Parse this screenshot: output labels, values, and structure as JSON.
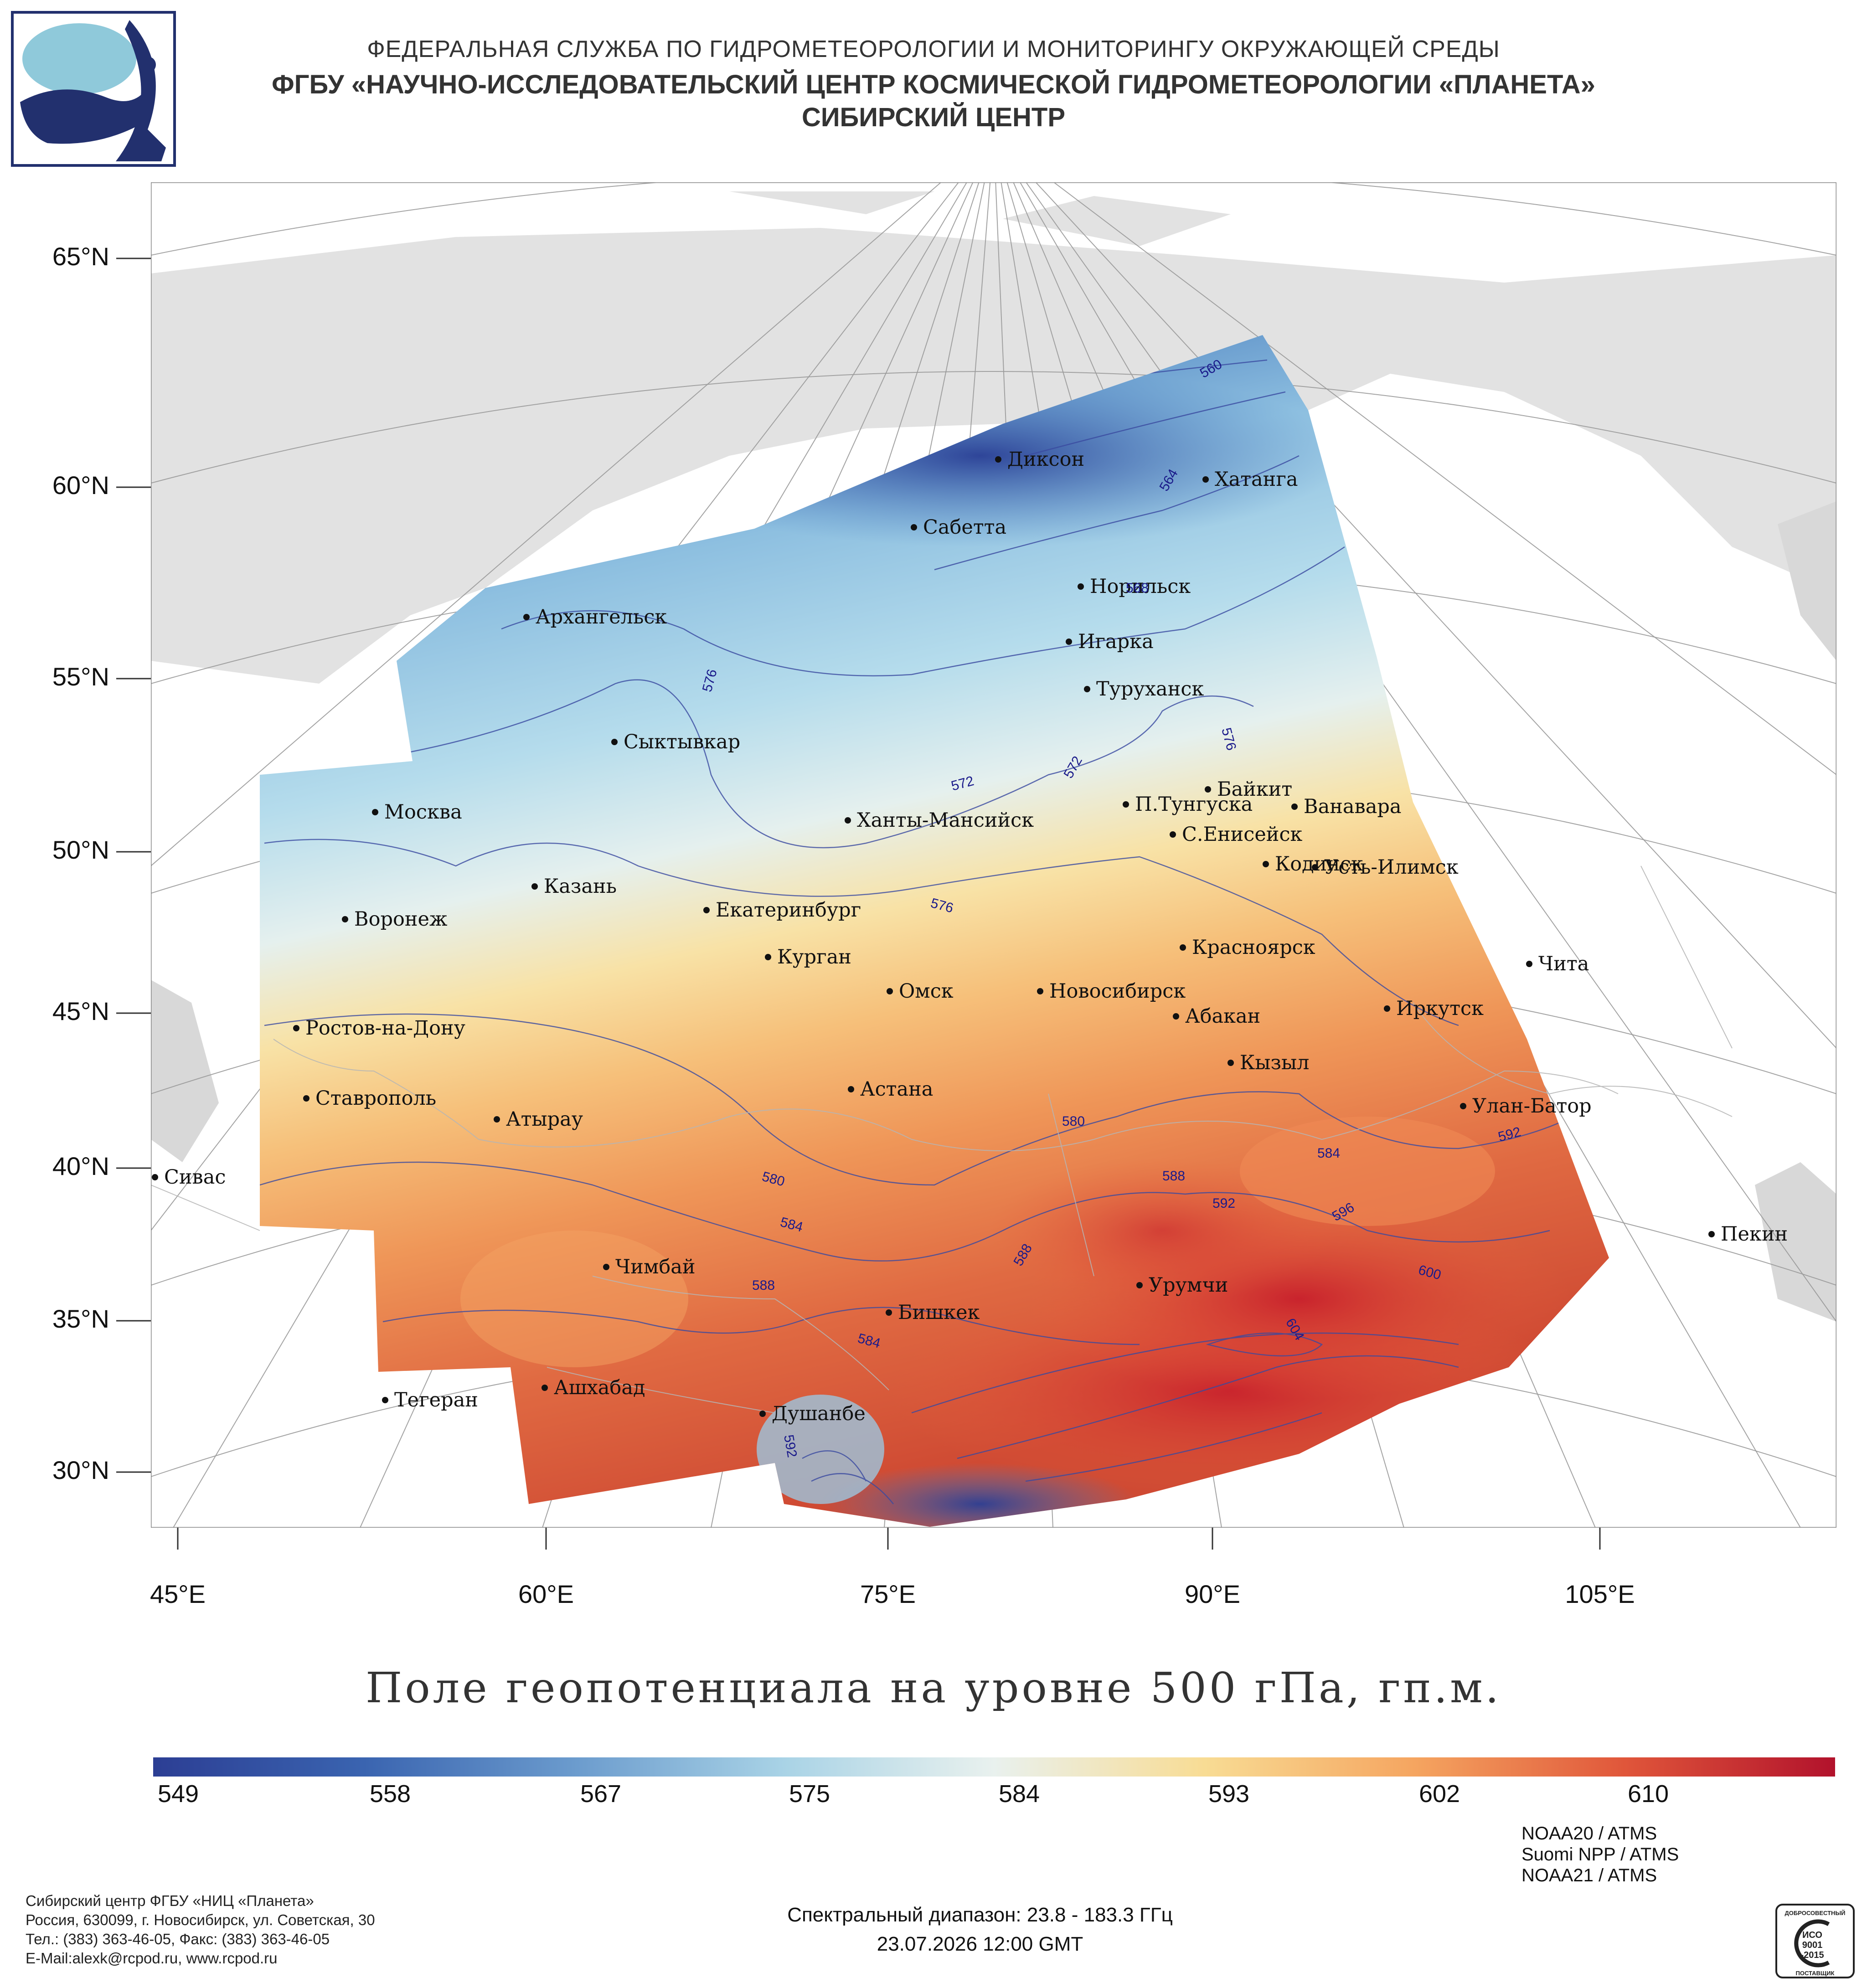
{
  "header": {
    "line1": "ФЕДЕРАЛЬНАЯ СЛУЖБА ПО ГИДРОМЕТЕОРОЛОГИИ И МОНИТОРИНГУ ОКРУЖАЮЩЕЙ СРЕДЫ",
    "line2": "ФГБУ «НАУЧНО-ИССЛЕДОВАТЕЛЬСКИЙ ЦЕНТР КОСМИЧЕСКОЙ ГИДРОМЕТЕОРОЛОГИИ «ПЛАНЕТА»",
    "line3": "СИБИРСКИЙ ЦЕНТР"
  },
  "map": {
    "lat_labels": [
      "65°N",
      "60°N",
      "55°N",
      "50°N",
      "45°N",
      "40°N",
      "35°N",
      "30°N"
    ],
    "lon_labels": [
      "45°E",
      "60°E",
      "75°E",
      "90°E",
      "105°E"
    ],
    "cities": [
      {
        "name": "Диксон"
      },
      {
        "name": "Хатанга"
      },
      {
        "name": "Сабетта"
      },
      {
        "name": "Норильск"
      },
      {
        "name": "Архангельск"
      },
      {
        "name": "Игарка"
      },
      {
        "name": "Туруханск"
      },
      {
        "name": "Сыктывкар"
      },
      {
        "name": "Байкит"
      },
      {
        "name": "Москва"
      },
      {
        "name": "П.Тунгуска"
      },
      {
        "name": "Ванавара"
      },
      {
        "name": "Ханты-Мансийск"
      },
      {
        "name": "С.Енисейск"
      },
      {
        "name": "Казань"
      },
      {
        "name": "Кодинск"
      },
      {
        "name": "Усть-Илимск"
      },
      {
        "name": "Екатеринбург"
      },
      {
        "name": "Воронеж"
      },
      {
        "name": "Красноярск"
      },
      {
        "name": "Курган"
      },
      {
        "name": "Чита"
      },
      {
        "name": "Омск"
      },
      {
        "name": "Новосибирск"
      },
      {
        "name": "Иркутск"
      },
      {
        "name": "Ростов-на-Дону"
      },
      {
        "name": "Абакан"
      },
      {
        "name": "Кызыл"
      },
      {
        "name": "Астана"
      },
      {
        "name": "Ставрополь"
      },
      {
        "name": "Улан-Батор"
      },
      {
        "name": "Атырау"
      },
      {
        "name": "Сивас"
      },
      {
        "name": "Пекин"
      },
      {
        "name": "Чимбай"
      },
      {
        "name": "Урумчи"
      },
      {
        "name": "Бишкек"
      },
      {
        "name": "Ашхабад"
      },
      {
        "name": "Тегеран"
      },
      {
        "name": "Душанбе"
      }
    ],
    "contour_labels": [
      "560",
      "564",
      "568",
      "572",
      "576",
      "580",
      "584",
      "588",
      "592",
      "596",
      "600",
      "604"
    ]
  },
  "title": "Поле геопотенциала на уровне 500 гПа, гп.м.",
  "colorbar": {
    "ticks": [
      "549",
      "558",
      "567",
      "575",
      "584",
      "593",
      "602",
      "610"
    ],
    "colors": [
      "#2c3e94",
      "#3a64b0",
      "#6b9bcd",
      "#a9d3e6",
      "#e9f1ee",
      "#f8dc94",
      "#f5a560",
      "#e0563a",
      "#b2122c"
    ]
  },
  "footer": {
    "org_lines": [
      "Сибирский центр ФГБУ «НИЦ «Планета»",
      "Россия, 630099, г. Новосибирск, ул. Советская, 30",
      "Тел.: (383) 363-46-05, Факс: (383) 363-46-05",
      "E-Mail:alexk@rcpod.ru, www.rcpod.ru"
    ],
    "spectral": "Спектральный диапазон: 23.8 - 183.3 ГГц",
    "datetime": "23.07.2026 12:00 GMT",
    "satellites": [
      "NOAA20 / ATMS",
      "Suomi NPP / ATMS",
      "NOAA21 / ATMS"
    ],
    "iso": {
      "top": "ДОБРОСОВЕСТНЫЙ",
      "l1": "ИСО",
      "l2": "9001",
      "l3": "-2015",
      "bottom": "ПОСТАВЩИК"
    }
  }
}
